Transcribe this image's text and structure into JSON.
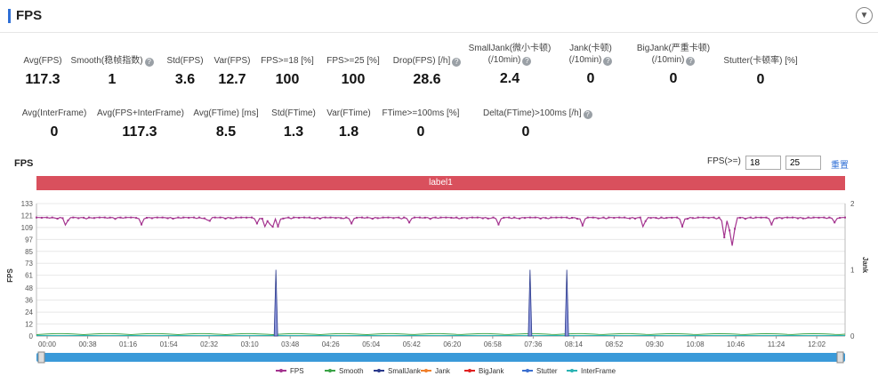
{
  "header": {
    "title": "FPS",
    "collapse_icon": "chevron-down-icon"
  },
  "stats_row1": [
    {
      "label": "Avg(FPS)",
      "value": "117.3",
      "help": false
    },
    {
      "label": "Smooth(稳帧指数)",
      "value": "1",
      "help": true
    },
    {
      "label": "Std(FPS)",
      "value": "3.6",
      "help": false
    },
    {
      "label": "Var(FPS)",
      "value": "12.7",
      "help": false
    },
    {
      "label": "FPS>=18 [%]",
      "value": "100",
      "help": false
    },
    {
      "label": "FPS>=25 [%]",
      "value": "100",
      "help": false
    },
    {
      "label": "Drop(FPS) [/h]",
      "value": "28.6",
      "help": true
    },
    {
      "label": "SmallJank(微小卡顿)",
      "label2": "(/10min)",
      "value": "2.4",
      "help": true
    },
    {
      "label": "Jank(卡顿)",
      "label2": "(/10min)",
      "value": "0",
      "help": true
    },
    {
      "label": "BigJank(严重卡顿)",
      "label2": "(/10min)",
      "value": "0",
      "help": true
    },
    {
      "label": "Stutter(卡顿率) [%]",
      "value": "0",
      "help": false
    }
  ],
  "stats_row2": [
    {
      "label": "Avg(InterFrame)",
      "value": "0",
      "help": false
    },
    {
      "label": "Avg(FPS+InterFrame)",
      "value": "117.3",
      "help": false
    },
    {
      "label": "Avg(FTime) [ms]",
      "value": "8.5",
      "help": false
    },
    {
      "label": "Std(FTime)",
      "value": "1.3",
      "help": false
    },
    {
      "label": "Var(FTime)",
      "value": "1.8",
      "help": false
    },
    {
      "label": "FTime>=100ms [%]",
      "value": "0",
      "help": false
    },
    {
      "label": "Delta(FTime)>100ms [/h]",
      "value": "0",
      "help": true
    }
  ],
  "chart_section": {
    "title": "FPS",
    "threshold_label": "FPS(>=)",
    "threshold1": "18",
    "threshold2": "25",
    "reset_label": "重置",
    "label_bar": "label1"
  },
  "chart_data": {
    "type": "line",
    "xlabel": "",
    "ylabel": "FPS",
    "y2label": "Jank",
    "yticks": [
      0,
      12,
      24,
      36,
      48,
      61,
      73,
      85,
      97,
      109,
      121,
      133
    ],
    "ylim": [
      0,
      133
    ],
    "y2ticks": [
      0,
      1,
      2
    ],
    "y2lim": [
      0,
      2
    ],
    "xticks": [
      "00:00",
      "00:38",
      "01:16",
      "01:54",
      "02:32",
      "03:10",
      "03:48",
      "04:26",
      "05:04",
      "05:42",
      "06:20",
      "06:58",
      "07:36",
      "08:14",
      "08:52",
      "09:30",
      "10:08",
      "10:46",
      "11:24",
      "12:02"
    ],
    "x_range_seconds": [
      0,
      770
    ],
    "grid": true,
    "legend_position": "bottom",
    "legend": [
      {
        "name": "FPS",
        "color": "#a4348f"
      },
      {
        "name": "Smooth",
        "color": "#3aa346"
      },
      {
        "name": "SmallJank",
        "color": "#2b3a8c"
      },
      {
        "name": "Jank",
        "color": "#f07f2a"
      },
      {
        "name": "BigJank",
        "color": "#e02020"
      },
      {
        "name": "Stutter",
        "color": "#3b6fd0"
      },
      {
        "name": "InterFrame",
        "color": "#2bb3b3"
      }
    ],
    "fps_baseline": 119,
    "fps_dips": [
      {
        "t": 28,
        "v": 110
      },
      {
        "t": 100,
        "v": 112
      },
      {
        "t": 164,
        "v": 114
      },
      {
        "t": 210,
        "v": 113
      },
      {
        "t": 218,
        "v": 108
      },
      {
        "t": 224,
        "v": 105
      },
      {
        "t": 230,
        "v": 110
      },
      {
        "t": 300,
        "v": 113
      },
      {
        "t": 355,
        "v": 114
      },
      {
        "t": 440,
        "v": 112
      },
      {
        "t": 520,
        "v": 111
      },
      {
        "t": 578,
        "v": 108
      },
      {
        "t": 615,
        "v": 110
      },
      {
        "t": 655,
        "v": 99
      },
      {
        "t": 660,
        "v": 106
      },
      {
        "t": 663,
        "v": 85
      },
      {
        "t": 700,
        "v": 112
      },
      {
        "t": 760,
        "v": 114
      }
    ],
    "smalljank_spikes_seconds": [
      228,
      470,
      505
    ],
    "smalljank_spike_value": 1
  },
  "scrollbar": {
    "left_handle": "left-handle",
    "right_handle": "right-handle"
  }
}
